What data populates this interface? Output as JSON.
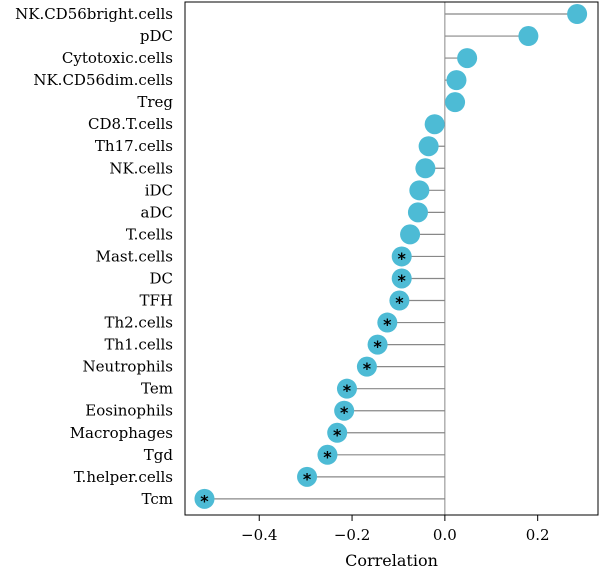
{
  "chart_data": {
    "type": "lollipop",
    "orientation": "horizontal",
    "xlabel": "Correlation",
    "xlim": [
      -0.56,
      0.33
    ],
    "xticks": [
      -0.4,
      -0.2,
      0.0,
      0.2
    ],
    "xtick_labels": [
      "−0.4",
      "−0.2",
      "0.0",
      "0.2"
    ],
    "reference_line_x": 0,
    "point_color": "#4dbbd5",
    "stem_color": "#888888",
    "significance_marker": "*",
    "categories": [
      "NK.CD56bright.cells",
      "pDC",
      "Cytotoxic.cells",
      "NK.CD56dim.cells",
      "Treg",
      "CD8.T.cells",
      "Th17.cells",
      "NK.cells",
      "iDC",
      "aDC",
      "T.cells",
      "Mast.cells",
      "DC",
      "TFH",
      "Th2.cells",
      "Th1.cells",
      "Neutrophils",
      "Tem",
      "Eosinophils",
      "Macrophages",
      "Tgd",
      "T.helper.cells",
      "Tcm"
    ],
    "values": [
      0.285,
      0.18,
      0.048,
      0.025,
      0.022,
      -0.022,
      -0.035,
      -0.042,
      -0.055,
      -0.058,
      -0.075,
      -0.093,
      -0.093,
      -0.098,
      -0.124,
      -0.145,
      -0.168,
      -0.211,
      -0.217,
      -0.232,
      -0.253,
      -0.297,
      -0.518
    ],
    "significant": [
      false,
      false,
      false,
      false,
      false,
      false,
      false,
      false,
      false,
      false,
      false,
      true,
      true,
      true,
      true,
      true,
      true,
      true,
      true,
      true,
      true,
      true,
      true
    ]
  }
}
